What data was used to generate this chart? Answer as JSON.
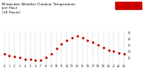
{
  "title": "Milwaukee Weather Outdoor Temperature\nper Hour\n(24 Hours)",
  "hours": [
    0,
    1,
    2,
    3,
    4,
    5,
    6,
    7,
    8,
    9,
    10,
    11,
    12,
    13,
    14,
    15,
    16,
    17,
    18,
    19,
    20,
    21,
    22,
    23
  ],
  "temps": [
    28,
    27,
    26,
    25,
    24,
    24,
    23,
    23,
    25,
    28,
    32,
    36,
    39,
    41,
    42,
    41,
    39,
    37,
    35,
    33,
    31,
    30,
    29,
    28
  ],
  "dot_color": "#cc0000",
  "bg_color": "#ffffff",
  "grid_color": "#999999",
  "title_color": "#111111",
  "tick_color": "#111111",
  "highlight_box_color": "#cc0000",
  "ylim": [
    20,
    46
  ],
  "xlim": [
    -0.5,
    23.5
  ],
  "title_fontsize": 2.8,
  "tick_fontsize": 2.2,
  "ytick_labels": [
    "25",
    "30",
    "35",
    "40",
    "45"
  ],
  "ytick_values": [
    25,
    30,
    35,
    40,
    45
  ]
}
